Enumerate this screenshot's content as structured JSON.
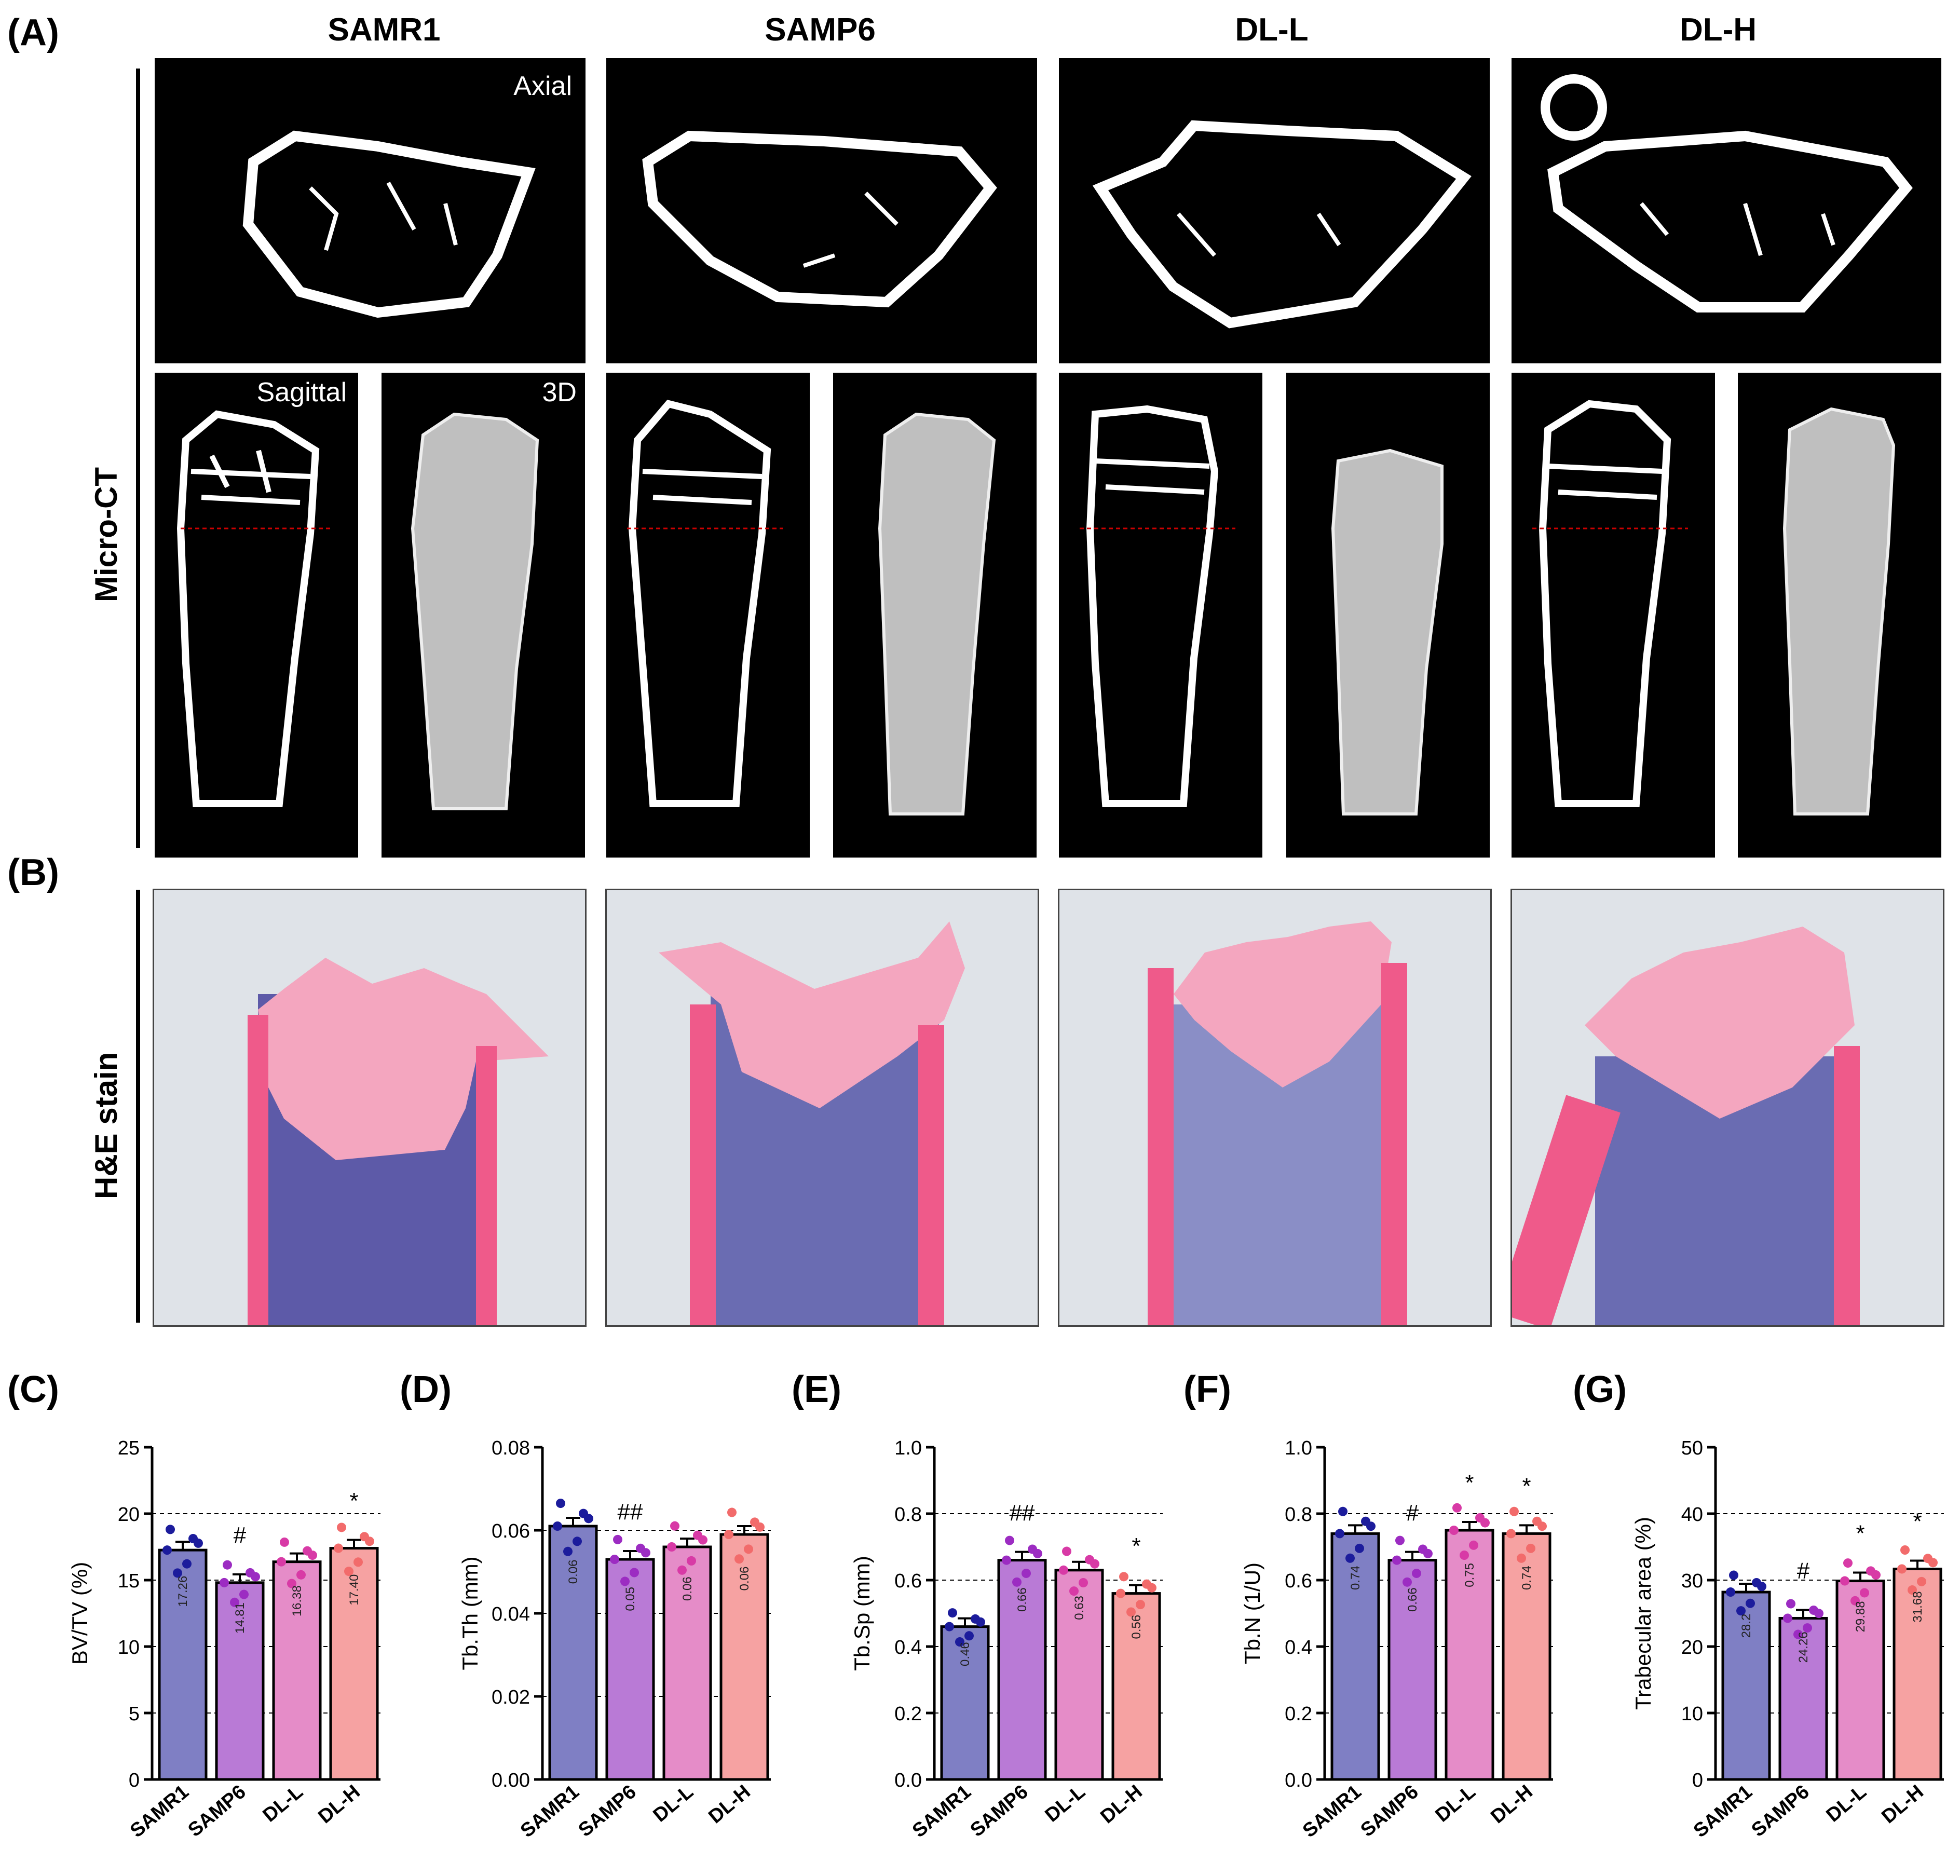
{
  "panels": {
    "A": "(A)",
    "B": "(B)",
    "C": "(C)",
    "D": "(D)",
    "E": "(E)",
    "F": "(F)",
    "G": "(G)"
  },
  "groups": [
    "SAMR1",
    "SAMP6",
    "DL-L",
    "DL-H"
  ],
  "microct": {
    "row_label": "Micro-CT",
    "axial_label": "Axial",
    "sagittal_label": "Sagittal",
    "view3d_label": "3D"
  },
  "he": {
    "row_label": "H&E stain"
  },
  "colors": {
    "SAMR1": "#7f7fc4",
    "SAMP6": "#b97ad6",
    "DL-L": "#e58cc8",
    "DL-H": "#f6a2a2",
    "dot_SAMR1": "#1c1c9c",
    "dot_SAMP6": "#9c2cc2",
    "dot_DL-L": "#d83aa6",
    "dot_DL-H": "#f26b6b"
  },
  "chart_data": [
    {
      "type": "bar",
      "panel": "C",
      "ylabel": "BV/TV (%)",
      "categories": [
        "SAMR1",
        "SAMP6",
        "DL-L",
        "DL-H"
      ],
      "values": [
        17.26,
        14.81,
        16.38,
        17.4
      ],
      "ylim": [
        0,
        25
      ],
      "yticks": [
        "0",
        "5",
        "10",
        "15",
        "20",
        "25"
      ],
      "gridlines": [
        5,
        10,
        15,
        20
      ],
      "bar_labels": [
        "17.26",
        "14.81",
        "16.38",
        "17.40"
      ],
      "sig": [
        "",
        "#",
        "",
        "*"
      ]
    },
    {
      "type": "bar",
      "panel": "D",
      "ylabel": "Tb.Th (mm)",
      "categories": [
        "SAMR1",
        "SAMP6",
        "DL-L",
        "DL-H"
      ],
      "values": [
        0.061,
        0.053,
        0.056,
        0.059
      ],
      "ylim": [
        0,
        0.08
      ],
      "yticks": [
        "0.00",
        "0.02",
        "0.04",
        "0.06",
        "0.08"
      ],
      "gridlines": [
        0.02,
        0.04,
        0.06
      ],
      "bar_labels": [
        "0.06",
        "0.05",
        "0.06",
        "0.06"
      ],
      "sig": [
        "",
        "##",
        "",
        ""
      ]
    },
    {
      "type": "bar",
      "panel": "E",
      "ylabel": "Tb.Sp (mm)",
      "categories": [
        "SAMR1",
        "SAMP6",
        "DL-L",
        "DL-H"
      ],
      "values": [
        0.46,
        0.66,
        0.63,
        0.56
      ],
      "ylim": [
        0,
        1.0
      ],
      "yticks": [
        "0.0",
        "0.2",
        "0.4",
        "0.6",
        "0.8",
        "1.0"
      ],
      "gridlines": [
        0.2,
        0.4,
        0.6,
        0.8
      ],
      "bar_labels": [
        "0.46",
        "0.66",
        "0.63",
        "0.56"
      ],
      "sig": [
        "",
        "##",
        "",
        "*"
      ]
    },
    {
      "type": "bar",
      "panel": "F",
      "ylabel": "Tb.N (1/U)",
      "categories": [
        "SAMR1",
        "SAMP6",
        "DL-L",
        "DL-H"
      ],
      "values": [
        0.74,
        0.66,
        0.75,
        0.74
      ],
      "ylim": [
        0,
        1.0
      ],
      "yticks": [
        "0.0",
        "0.2",
        "0.4",
        "0.6",
        "0.8",
        "1.0"
      ],
      "gridlines": [
        0.2,
        0.4,
        0.6,
        0.8
      ],
      "bar_labels": [
        "0.74",
        "0.66",
        "0.75",
        "0.74"
      ],
      "sig": [
        "",
        "#",
        "*",
        "*"
      ]
    },
    {
      "type": "bar",
      "panel": "G",
      "ylabel": "Trabecular area  (%)",
      "categories": [
        "SAMR1",
        "SAMP6",
        "DL-L",
        "DL-H"
      ],
      "values": [
        28.2,
        24.26,
        29.88,
        31.68
      ],
      "ylim": [
        0,
        50
      ],
      "yticks": [
        "0",
        "10",
        "20",
        "30",
        "40",
        "50"
      ],
      "gridlines": [
        10,
        20,
        30,
        40
      ],
      "bar_labels": [
        "28.2",
        "24.26",
        "29.88",
        "31.68"
      ],
      "sig": [
        "",
        "#",
        "*",
        "*"
      ]
    }
  ]
}
